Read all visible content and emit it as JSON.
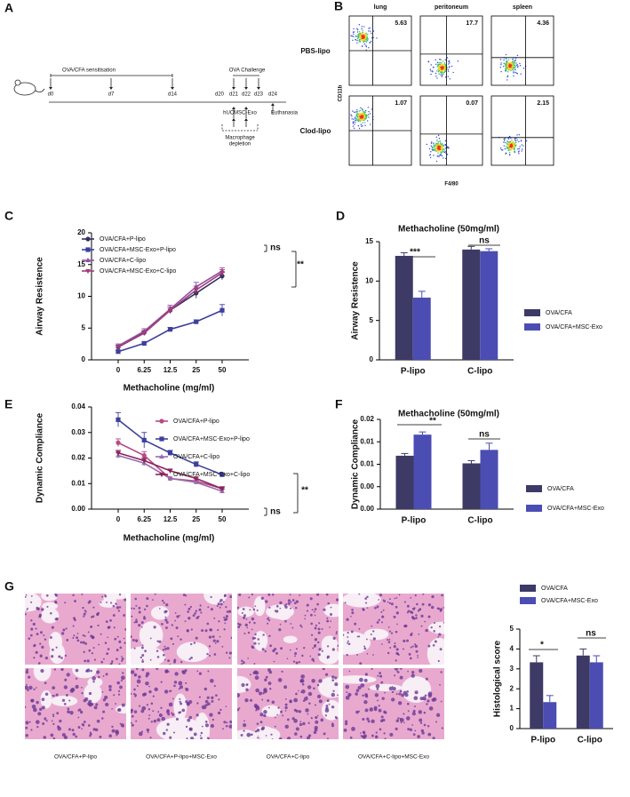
{
  "panel_labels": [
    "A",
    "B",
    "C",
    "D",
    "E",
    "F",
    "G"
  ],
  "protocol": {
    "sensitisation": "OVA/CFA sensitisation",
    "challenge": "OVA Challenge",
    "days": [
      "d0",
      "d7",
      "d14",
      "d20",
      "d21",
      "d22",
      "d23",
      "d24"
    ],
    "treatment": "hUCMSC-Exo",
    "endpoint": "Euthanasia",
    "depletion": [
      "Macrophage",
      "depletion"
    ]
  },
  "flow": {
    "columns": [
      "lung",
      "peritoneum",
      "spleen"
    ],
    "rows": [
      "PBS-lipo",
      "Clod-lipo"
    ],
    "percentages": [
      [
        5.63,
        17.7,
        4.36
      ],
      [
        1.07,
        0.07,
        2.15
      ]
    ],
    "y_axis": "CD11b",
    "x_axis": "F4/80"
  },
  "histology": {
    "captions": [
      "OVA/CFA+P-lipo",
      "OVA/CFA+P-lipo+MSC-Exo",
      "OVA/CFA+C-lipo",
      "OVA/CFA+C-lipo+MSC-Exo"
    ]
  },
  "chart_data": [
    {
      "type": "line",
      "categories": [
        "0",
        "6.25",
        "12.5",
        "25",
        "50"
      ],
      "series": [
        {
          "name": "OVA/CFA+P-lipo",
          "color": "#34305e",
          "marker": "circle",
          "values": [
            2.0,
            4.3,
            7.8,
            10.5,
            13.2
          ],
          "errors": [
            0.3,
            0.3,
            0.5,
            0.8,
            0.6
          ]
        },
        {
          "name": "OVA/CFA+MSC-Exo+P-lipo",
          "color": "#3d3f9e",
          "marker": "square",
          "values": [
            1.3,
            2.6,
            4.8,
            6.0,
            7.8
          ],
          "errors": [
            0.2,
            0.2,
            0.3,
            0.3,
            0.9
          ]
        },
        {
          "name": "OVA/CFA+C-lipo",
          "color": "#8e4fa3",
          "marker": "triangle",
          "values": [
            2.2,
            4.5,
            8.0,
            11.5,
            14.0
          ],
          "errors": [
            0.3,
            0.4,
            0.6,
            0.7,
            0.5
          ]
        },
        {
          "name": "OVA/CFA+MSC-Exo+C-lipo",
          "color": "#a33a78",
          "marker": "triangle-down",
          "values": [
            2.0,
            4.2,
            7.8,
            11.0,
            13.7
          ],
          "errors": [
            0.3,
            0.3,
            0.5,
            0.6,
            0.5
          ]
        }
      ],
      "ylim": [
        0,
        20
      ],
      "yticks": [
        0,
        5,
        10,
        15,
        20
      ],
      "xlabel": "Methacholine (mg/ml)",
      "ylabel": "Airway Resistence",
      "annotations": [
        "ns",
        "**"
      ]
    },
    {
      "type": "bar",
      "title": "Methacholine (50mg/ml)",
      "categories": [
        "P-lipo",
        "C-lipo"
      ],
      "series": [
        {
          "name": "OVA/CFA",
          "color": "#3d3a66",
          "values": [
            13.2,
            14.0
          ],
          "errors": [
            0.4,
            0.4
          ]
        },
        {
          "name": "OVA/CFA+MSC-Exo",
          "color": "#4b4db3",
          "values": [
            7.9,
            13.8
          ],
          "errors": [
            0.8,
            0.3
          ]
        }
      ],
      "ylim": [
        0,
        15
      ],
      "yticks": [
        0,
        5,
        10,
        15
      ],
      "ylabel": "Airway Resistence",
      "annotations": [
        "***",
        "ns"
      ]
    },
    {
      "type": "line",
      "categories": [
        "0",
        "6.25",
        "12.5",
        "25",
        "50"
      ],
      "series": [
        {
          "name": "OVA/CFA+P-lipo",
          "color": "#b84a86",
          "marker": "circle",
          "values": [
            0.026,
            0.021,
            0.012,
            0.011,
            0.008
          ],
          "errors": [
            0.0015,
            0.0015,
            0.0005,
            0.0008,
            0.0008
          ]
        },
        {
          "name": "OVA/CFA+MSC-Exo+P-lipo",
          "color": "#3d3f9e",
          "marker": "square",
          "values": [
            0.035,
            0.027,
            0.022,
            0.0175,
            0.0135
          ],
          "errors": [
            0.0028,
            0.003,
            0.001,
            0.001,
            0.0004
          ]
        },
        {
          "name": "OVA/CFA+C-lipo",
          "color": "#9a6bb0",
          "marker": "triangle",
          "values": [
            0.021,
            0.018,
            0.012,
            0.0105,
            0.007
          ],
          "errors": [
            0.001,
            0.001,
            0.0005,
            0.0006,
            0.0008
          ]
        },
        {
          "name": "OVA/CFA+MSC-Exo+C-lipo",
          "color": "#8a2457",
          "marker": "triangle-down",
          "values": [
            0.022,
            0.019,
            0.015,
            0.012,
            0.008
          ],
          "errors": [
            0.001,
            0.001,
            0.0007,
            0.0006,
            0.0007
          ]
        }
      ],
      "ylim": [
        0,
        0.04
      ],
      "yticks": [
        {
          "value": 0,
          "label": "0.00"
        },
        0.01,
        0.02,
        0.03,
        0.04
      ],
      "xlabel": "Methacholine (mg/ml)",
      "ylabel": "Dynamic Compliance",
      "annotations": [
        "ns",
        "**"
      ]
    },
    {
      "type": "bar",
      "title": "Methacholine (50mg/ml)",
      "categories": [
        "P-lipo",
        "C-lipo"
      ],
      "series": [
        {
          "name": "OVA/CFA",
          "color": "#3d3a66",
          "values": [
            0.0119,
            0.0102
          ],
          "errors": [
            0.0005,
            0.0006
          ]
        },
        {
          "name": "OVA/CFA+MSC-Exo",
          "color": "#4b4db3",
          "values": [
            0.0166,
            0.0132
          ],
          "errors": [
            0.0006,
            0.0015
          ]
        }
      ],
      "ylim": [
        0,
        0.02
      ],
      "yticks": [
        {
          "value": 0,
          "label": "0.00"
        },
        {
          "value": 0.005,
          "label": "0.00"
        },
        0.01,
        {
          "value": 0.015,
          "label": "0.01"
        },
        0.02
      ],
      "ylabel": "Dynamic Compliance",
      "annotations": [
        "**",
        "ns"
      ]
    },
    {
      "type": "bar",
      "categories": [
        "P-lipo",
        "C-lipo"
      ],
      "series": [
        {
          "name": "OVA/CFA",
          "color": "#3d3a66",
          "values": [
            3.33,
            3.67
          ],
          "errors": [
            0.33,
            0.33
          ]
        },
        {
          "name": "OVA/CFA+MSC-Exo",
          "color": "#4b4db3",
          "values": [
            1.33,
            3.33
          ],
          "errors": [
            0.33,
            0.33
          ]
        }
      ],
      "ylim": [
        0,
        5
      ],
      "yticks": [
        0,
        1,
        2,
        3,
        4,
        5
      ],
      "ylabel": "Histological score",
      "annotations": [
        "*",
        "ns"
      ]
    }
  ]
}
